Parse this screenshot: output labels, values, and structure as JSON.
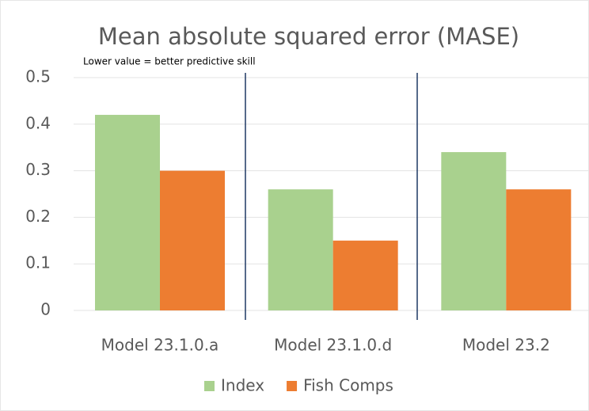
{
  "chart_data": {
    "type": "bar",
    "title": "Mean absolute squared error (MASE)",
    "subtitle": "Lower value = better predictive skill",
    "categories": [
      "Model 23.1.0.a",
      "Model 23.1.0.d",
      "Model 23.2"
    ],
    "series": [
      {
        "name": "Index",
        "color": "#a9d18e",
        "values": [
          0.42,
          0.26,
          0.34
        ]
      },
      {
        "name": "Fish Comps",
        "color": "#ed7d31",
        "values": [
          0.3,
          0.15,
          0.26
        ]
      }
    ],
    "ylim": [
      0,
      0.5
    ],
    "yticks": [
      0,
      0.1,
      0.2,
      0.3,
      0.4,
      0.5
    ],
    "grid": true,
    "legend": "bottom"
  }
}
